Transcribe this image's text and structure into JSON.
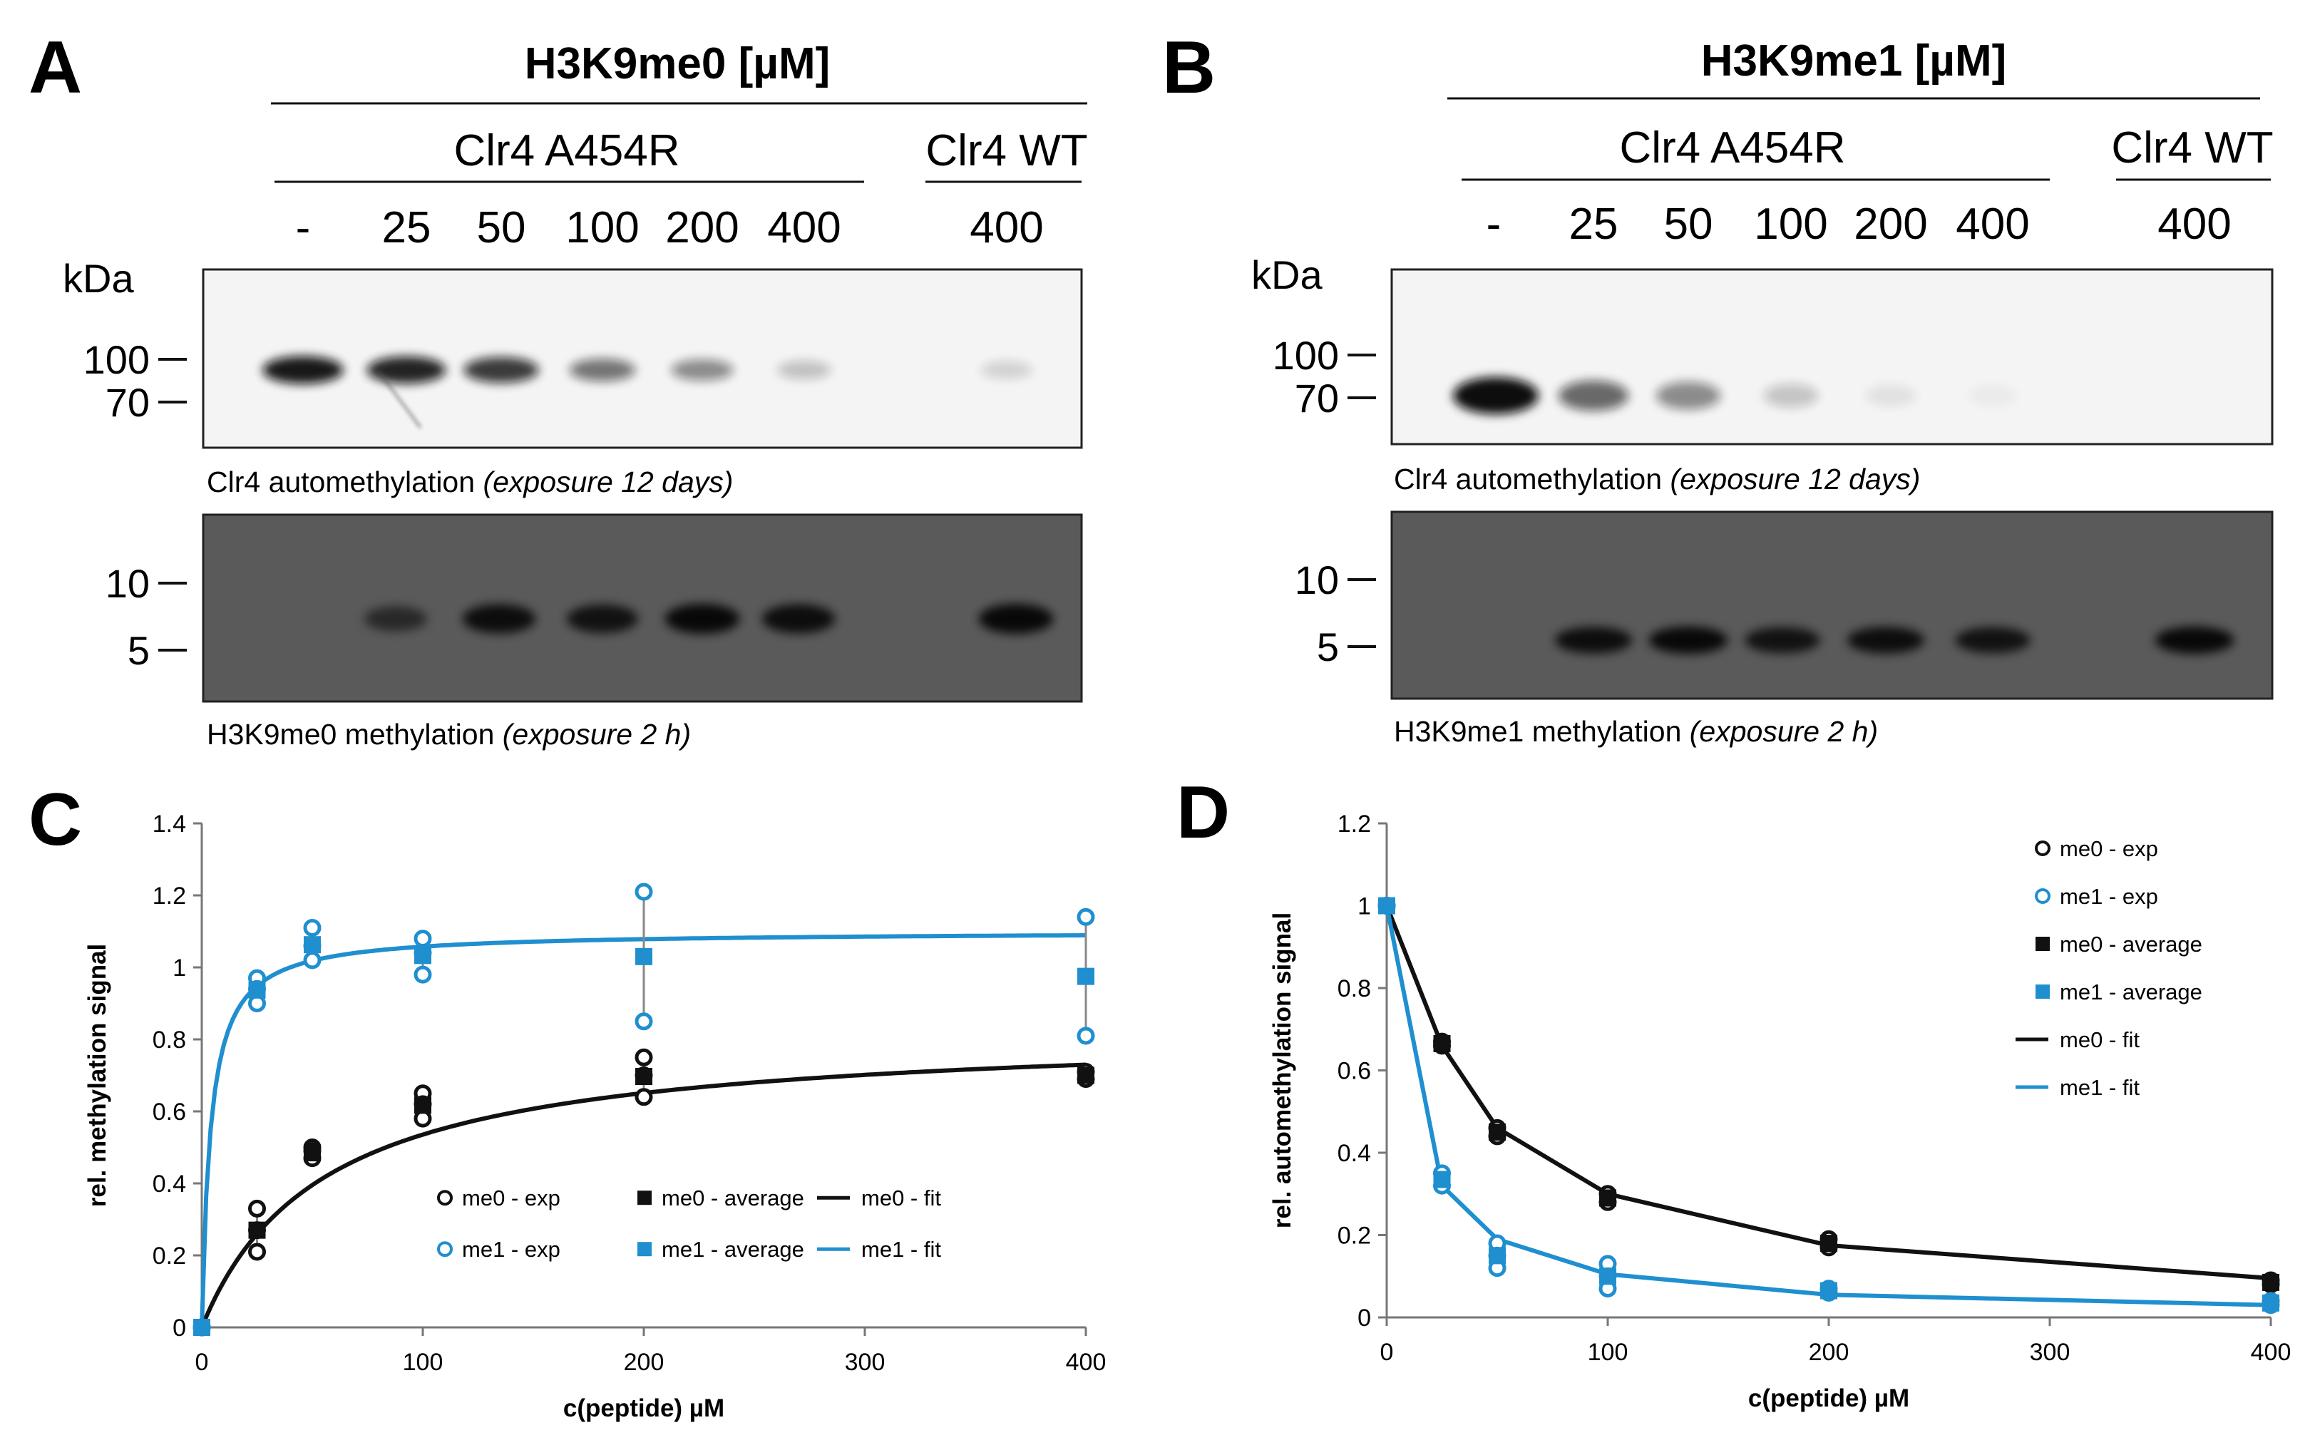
{
  "panels": {
    "A": {
      "letter": "A",
      "peptide": "H3K9me0 [µM]",
      "groups": [
        "Clr4 A454R",
        "Clr4 WT"
      ],
      "lanes": [
        "-",
        "25",
        "50",
        "100",
        "200",
        "400",
        "400"
      ],
      "kda_label": "kDa",
      "blot1_markers": [
        "100",
        "70"
      ],
      "blot2_markers": [
        "10",
        "5"
      ],
      "blot1_caption": "Clr4 automethylation",
      "blot1_caption_italic": "(exposure 12 days)",
      "blot2_caption": "H3K9me0 methylation",
      "blot2_caption_italic": "(exposure 2 h)",
      "auto_band_intensity": [
        0.95,
        0.9,
        0.8,
        0.55,
        0.45,
        0.22,
        0.15
      ],
      "substrate_band_intensity": [
        0,
        0.55,
        0.85,
        0.8,
        0.9,
        0.85,
        0.9
      ]
    },
    "B": {
      "letter": "B",
      "peptide": "H3K9me1 [µM]",
      "groups": [
        "Clr4 A454R",
        "Clr4 WT"
      ],
      "lanes": [
        "-",
        "25",
        "50",
        "100",
        "200",
        "400",
        "400"
      ],
      "kda_label": "kDa",
      "blot1_markers": [
        "100",
        "70"
      ],
      "blot2_markers": [
        "10",
        "5"
      ],
      "blot1_caption": "Clr4 automethylation",
      "blot1_caption_italic": "(exposure 12 days)",
      "blot2_caption": "H3K9me1 methylation",
      "blot2_caption_italic": "(exposure 2 h)",
      "auto_band_intensity": [
        1.0,
        0.6,
        0.45,
        0.2,
        0.08,
        0.04,
        0.0
      ],
      "substrate_band_intensity": [
        0,
        0.85,
        0.9,
        0.8,
        0.85,
        0.8,
        0.9
      ]
    }
  },
  "colors": {
    "me0": "#111111",
    "me1": "#1f8fd0"
  },
  "chart_data": [
    {
      "panel": "C",
      "type": "scatter",
      "xlabel": "c(peptide) µM",
      "ylabel": "rel. methylation signal",
      "xlim": [
        0,
        400
      ],
      "ylim": [
        0,
        1.4
      ],
      "xticks": [
        0,
        100,
        200,
        300,
        400
      ],
      "yticks": [
        0,
        0.2,
        0.4,
        0.6,
        0.8,
        1,
        1.2,
        1.4
      ],
      "ytick_labels": [
        "0",
        "0.2",
        "0.4",
        "0.6",
        "0.8",
        "1",
        "1.2",
        "1.4"
      ],
      "legend_position": "bottom-right",
      "series": [
        {
          "name": "me0 - exp",
          "style": "open-circle",
          "color": "#111111",
          "points": [
            [
              0,
              0
            ],
            [
              0,
              0
            ],
            [
              25,
              0.33
            ],
            [
              25,
              0.21
            ],
            [
              25,
              0.27
            ],
            [
              50,
              0.5
            ],
            [
              50,
              0.47
            ],
            [
              50,
              0.49
            ],
            [
              100,
              0.65
            ],
            [
              100,
              0.58
            ],
            [
              100,
              0.62
            ],
            [
              200,
              0.75
            ],
            [
              200,
              0.64
            ],
            [
              200,
              0.7
            ],
            [
              400,
              0.71
            ],
            [
              400,
              0.69
            ]
          ]
        },
        {
          "name": "me1 - exp",
          "style": "open-circle",
          "color": "#1f8fd0",
          "points": [
            [
              0,
              0
            ],
            [
              0,
              0
            ],
            [
              25,
              0.97
            ],
            [
              25,
              0.9
            ],
            [
              25,
              0.94
            ],
            [
              50,
              1.11
            ],
            [
              50,
              1.02
            ],
            [
              50,
              1.06
            ],
            [
              100,
              1.08
            ],
            [
              100,
              0.98
            ],
            [
              100,
              1.04
            ],
            [
              200,
              1.21
            ],
            [
              200,
              0.85
            ],
            [
              400,
              1.14
            ],
            [
              400,
              0.81
            ]
          ]
        },
        {
          "name": "me0 - average",
          "style": "filled-square",
          "color": "#111111",
          "points": [
            [
              0,
              0
            ],
            [
              25,
              0.27
            ],
            [
              50,
              0.485
            ],
            [
              100,
              0.617
            ],
            [
              200,
              0.697
            ],
            [
              400,
              0.7
            ]
          ],
          "errors": [
            0,
            0.06,
            0.015,
            0.035,
            0.055,
            0.01
          ]
        },
        {
          "name": "me1 - average",
          "style": "filled-square",
          "color": "#1f8fd0",
          "points": [
            [
              0,
              0
            ],
            [
              25,
              0.937
            ],
            [
              50,
              1.063
            ],
            [
              100,
              1.033
            ],
            [
              200,
              1.03
            ],
            [
              400,
              0.975
            ]
          ],
          "errors": [
            0,
            0.035,
            0.045,
            0.05,
            0.18,
            0.165
          ]
        },
        {
          "name": "me0 - fit",
          "style": "line",
          "color": "#111111",
          "fit": {
            "vmax": 0.83,
            "km": 55
          }
        },
        {
          "name": "me1 - fit",
          "style": "line",
          "color": "#1f8fd0",
          "fit": {
            "vmax": 1.1,
            "km": 4
          }
        }
      ]
    },
    {
      "panel": "D",
      "type": "scatter",
      "xlabel": "c(peptide) µM",
      "ylabel": "rel. automethylation signal",
      "xlim": [
        0,
        400
      ],
      "ylim": [
        0,
        1.2
      ],
      "xticks": [
        0,
        100,
        200,
        300,
        400
      ],
      "yticks": [
        0,
        0.2,
        0.4,
        0.6,
        0.8,
        1,
        1.2
      ],
      "ytick_labels": [
        "0",
        "0.2",
        "0.4",
        "0.6",
        "0.8",
        "1",
        "1.2"
      ],
      "legend_position": "top-right",
      "series": [
        {
          "name": "me0 - exp",
          "style": "open-circle",
          "color": "#111111",
          "points": [
            [
              0,
              1
            ],
            [
              0,
              1
            ],
            [
              25,
              0.67
            ],
            [
              25,
              0.66
            ],
            [
              50,
              0.46
            ],
            [
              50,
              0.44
            ],
            [
              100,
              0.3
            ],
            [
              100,
              0.28
            ],
            [
              200,
              0.19
            ],
            [
              200,
              0.17
            ],
            [
              400,
              0.09
            ],
            [
              400,
              0.08
            ]
          ]
        },
        {
          "name": "me1 - exp",
          "style": "open-circle",
          "color": "#1f8fd0",
          "points": [
            [
              0,
              1
            ],
            [
              0,
              1
            ],
            [
              25,
              0.35
            ],
            [
              25,
              0.32
            ],
            [
              50,
              0.18
            ],
            [
              50,
              0.15
            ],
            [
              50,
              0.12
            ],
            [
              100,
              0.13
            ],
            [
              100,
              0.1
            ],
            [
              100,
              0.07
            ],
            [
              200,
              0.07
            ],
            [
              200,
              0.06
            ],
            [
              400,
              0.04
            ],
            [
              400,
              0.03
            ]
          ]
        },
        {
          "name": "me0 - average",
          "style": "filled-square",
          "color": "#111111",
          "points": [
            [
              0,
              1
            ],
            [
              25,
              0.665
            ],
            [
              50,
              0.45
            ],
            [
              100,
              0.29
            ],
            [
              200,
              0.18
            ],
            [
              400,
              0.085
            ]
          ]
        },
        {
          "name": "me1 - average",
          "style": "filled-square",
          "color": "#1f8fd0",
          "points": [
            [
              0,
              1
            ],
            [
              25,
              0.335
            ],
            [
              50,
              0.15
            ],
            [
              100,
              0.1
            ],
            [
              200,
              0.065
            ],
            [
              400,
              0.035
            ]
          ]
        },
        {
          "name": "me0 - fit",
          "style": "line",
          "color": "#111111",
          "points": [
            [
              0,
              1
            ],
            [
              25,
              0.66
            ],
            [
              50,
              0.46
            ],
            [
              100,
              0.3
            ],
            [
              200,
              0.175
            ],
            [
              400,
              0.095
            ]
          ]
        },
        {
          "name": "me1 - fit",
          "style": "line",
          "color": "#1f8fd0",
          "points": [
            [
              0,
              1
            ],
            [
              25,
              0.32
            ],
            [
              50,
              0.19
            ],
            [
              100,
              0.105
            ],
            [
              200,
              0.055
            ],
            [
              400,
              0.03
            ]
          ]
        }
      ]
    }
  ]
}
